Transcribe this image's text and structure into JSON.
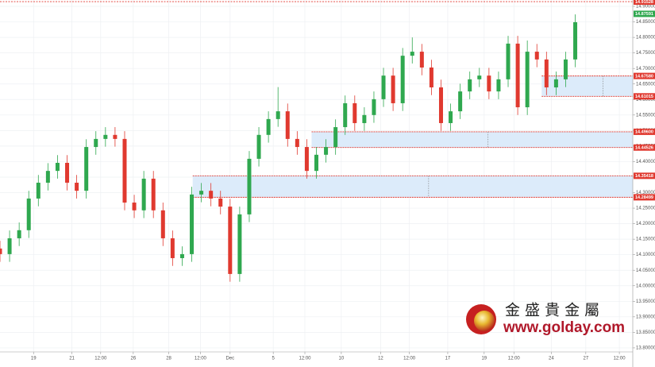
{
  "chart_data": {
    "type": "candlestick",
    "x": [
      0,
      1,
      2,
      3,
      4,
      5,
      6,
      7,
      8,
      9,
      10,
      11,
      12,
      13,
      14,
      15,
      16,
      17,
      18,
      19,
      20,
      21,
      22,
      23,
      24,
      25,
      26,
      27,
      28,
      29,
      30,
      31,
      32,
      33,
      34,
      35,
      36,
      37,
      38,
      39,
      40,
      41,
      42,
      43,
      44,
      45,
      46,
      47,
      48,
      49,
      50,
      51,
      52,
      53,
      54,
      55,
      56,
      57,
      58,
      59,
      60
    ],
    "open": [
      14.12,
      14.102,
      14.153,
      14.179,
      14.281,
      14.332,
      14.37,
      14.396,
      14.332,
      14.306,
      14.447,
      14.473,
      14.486,
      14.473,
      14.268,
      14.243,
      14.345,
      14.243,
      14.153,
      14.089,
      14.102,
      14.294,
      14.306,
      14.281,
      14.255,
      14.038,
      14.23,
      14.409,
      14.486,
      14.537,
      14.562,
      14.473,
      14.447,
      14.37,
      14.422,
      14.447,
      14.511,
      14.588,
      14.524,
      14.55,
      14.601,
      14.677,
      14.588,
      14.741,
      14.754,
      14.703,
      14.639,
      14.524,
      14.562,
      14.626,
      14.665,
      14.677,
      14.626,
      14.665,
      14.78,
      14.575,
      14.754,
      14.729,
      14.639,
      14.665,
      14.729
    ],
    "high": [
      14.145,
      14.178,
      14.204,
      14.306,
      14.357,
      14.395,
      14.421,
      14.421,
      14.357,
      14.472,
      14.498,
      14.511,
      14.511,
      14.498,
      14.293,
      14.37,
      14.37,
      14.268,
      14.178,
      14.127,
      14.319,
      14.331,
      14.331,
      14.306,
      14.28,
      14.255,
      14.434,
      14.511,
      14.562,
      14.64,
      14.587,
      14.498,
      14.472,
      14.447,
      14.472,
      14.536,
      14.613,
      14.613,
      14.575,
      14.626,
      14.702,
      14.702,
      14.766,
      14.8,
      14.779,
      14.728,
      14.664,
      14.587,
      14.651,
      14.69,
      14.702,
      14.702,
      14.69,
      14.805,
      14.805,
      14.79,
      14.779,
      14.754,
      14.69,
      14.754,
      14.874
    ],
    "low": [
      14.077,
      14.077,
      14.128,
      14.154,
      14.256,
      14.307,
      14.345,
      14.307,
      14.281,
      14.281,
      14.422,
      14.448,
      14.448,
      14.243,
      14.218,
      14.218,
      14.218,
      14.128,
      14.064,
      14.064,
      14.077,
      14.269,
      14.256,
      14.23,
      14.013,
      14.013,
      14.205,
      14.384,
      14.461,
      14.512,
      14.448,
      14.422,
      14.345,
      14.345,
      14.397,
      14.422,
      14.486,
      14.499,
      14.499,
      14.525,
      14.576,
      14.563,
      14.563,
      14.716,
      14.678,
      14.614,
      14.499,
      14.499,
      14.537,
      14.601,
      14.64,
      14.601,
      14.601,
      14.64,
      14.55,
      14.55,
      14.704,
      14.614,
      14.614,
      14.64,
      14.704
    ],
    "close": [
      14.102,
      14.153,
      14.179,
      14.281,
      14.332,
      14.37,
      14.396,
      14.332,
      14.306,
      14.447,
      14.473,
      14.486,
      14.473,
      14.268,
      14.243,
      14.345,
      14.243,
      14.153,
      14.089,
      14.102,
      14.294,
      14.306,
      14.281,
      14.255,
      14.038,
      14.23,
      14.409,
      14.486,
      14.537,
      14.562,
      14.473,
      14.447,
      14.37,
      14.422,
      14.447,
      14.511,
      14.588,
      14.524,
      14.55,
      14.601,
      14.677,
      14.588,
      14.741,
      14.754,
      14.703,
      14.639,
      14.524,
      14.562,
      14.626,
      14.665,
      14.677,
      14.626,
      14.665,
      14.78,
      14.575,
      14.754,
      14.729,
      14.639,
      14.665,
      14.729,
      14.849
    ],
    "up_color": "#2fa84f",
    "down_color": "#e0392f",
    "xlim": [
      0,
      66
    ],
    "ylim": [
      13.787,
      14.9205
    ],
    "grid": true,
    "xticks": [
      {
        "value": 3.5,
        "label": "19"
      },
      {
        "value": 7.5,
        "label": "21"
      },
      {
        "value": 10.5,
        "label": "12:00"
      },
      {
        "value": 13.9,
        "label": "26"
      },
      {
        "value": 17.6,
        "label": "28"
      },
      {
        "value": 20.9,
        "label": "12:00"
      },
      {
        "value": 24.0,
        "label": "Dec"
      },
      {
        "value": 28.5,
        "label": "5"
      },
      {
        "value": 31.8,
        "label": "12:00"
      },
      {
        "value": 35.6,
        "label": "10"
      },
      {
        "value": 39.7,
        "label": "12"
      },
      {
        "value": 42.7,
        "label": "12:00"
      },
      {
        "value": 46.7,
        "label": "17"
      },
      {
        "value": 50.5,
        "label": "19"
      },
      {
        "value": 53.6,
        "label": "12:00"
      },
      {
        "value": 57.5,
        "label": "24"
      },
      {
        "value": 61.1,
        "label": "27"
      },
      {
        "value": 64.6,
        "label": "12:00"
      }
    ],
    "yticks": [
      {
        "value": 14.9,
        "label": "14.90000"
      },
      {
        "value": 14.85,
        "label": "14.85000"
      },
      {
        "value": 14.8,
        "label": "14.80000"
      },
      {
        "value": 14.75,
        "label": "14.75000"
      },
      {
        "value": 14.7,
        "label": "14.70000"
      },
      {
        "value": 14.65,
        "label": "14.65000"
      },
      {
        "value": 14.6,
        "label": "14.60000"
      },
      {
        "value": 14.55,
        "label": "14.55000"
      },
      {
        "value": 14.5,
        "label": "14.50000"
      },
      {
        "value": 14.45,
        "label": "14.45000"
      },
      {
        "value": 14.4,
        "label": "14.40000"
      },
      {
        "value": 14.35,
        "label": "14.35000"
      },
      {
        "value": 14.3,
        "label": "14.30000"
      },
      {
        "value": 14.25,
        "label": "14.25000"
      },
      {
        "value": 14.2,
        "label": "14.20000"
      },
      {
        "value": 14.15,
        "label": "14.15000"
      },
      {
        "value": 14.1,
        "label": "14.10000"
      },
      {
        "value": 14.05,
        "label": "14.05000"
      },
      {
        "value": 14.0,
        "label": "14.00000"
      },
      {
        "value": 13.95,
        "label": "13.95000"
      },
      {
        "value": 13.9,
        "label": "13.90000"
      },
      {
        "value": 13.85,
        "label": "13.85000"
      },
      {
        "value": 13.8,
        "label": "13.80000"
      }
    ],
    "zones": [
      {
        "start": 20.1,
        "high": {
          "value": 14.35418,
          "label": "14.35418"
        },
        "low": {
          "value": 14.28499,
          "label": "14.28499"
        }
      },
      {
        "start": 32.5,
        "high": {
          "value": 14.496,
          "label": "14.49600"
        },
        "low": {
          "value": 14.44526,
          "label": "14.44526"
        }
      },
      {
        "start": 56.5,
        "high": {
          "value": 14.6758,
          "label": "14.67580"
        },
        "low": {
          "value": 14.61015,
          "label": "14.61015"
        }
      }
    ],
    "zone_color": "#dcebfa",
    "zone_line_color": "#e0392f",
    "price_lines": [
      {
        "value": 14.91528,
        "label": "14.91528",
        "color": "#e0392f",
        "dashed": true
      },
      {
        "value": 14.87591,
        "label": "14.87591",
        "color": "#2fa84f",
        "dashed": false
      }
    ]
  },
  "branding": {
    "name": "金 盛 貴 金 屬",
    "url": "www.golday.com"
  }
}
